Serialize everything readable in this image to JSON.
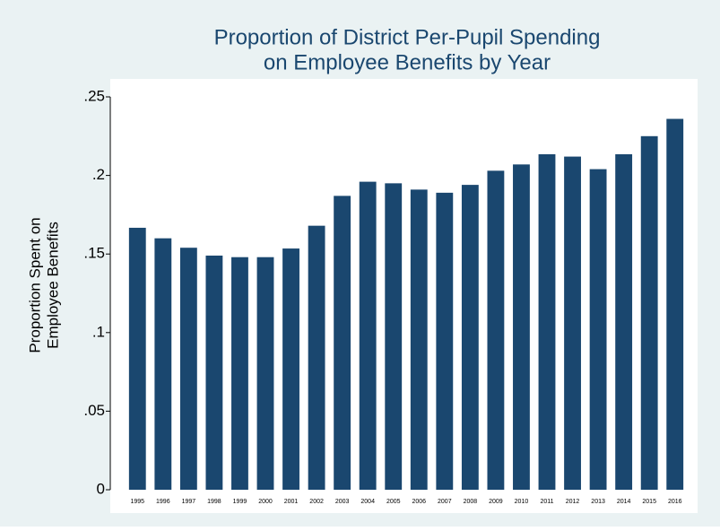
{
  "chart_data": {
    "type": "bar",
    "title": [
      "Proportion of District Per-Pupil Spending",
      "on Employee Benefits by Year"
    ],
    "y_label": [
      "Proportion Spent on",
      "Employee Benefits"
    ],
    "categories": [
      "1995",
      "1996",
      "1997",
      "1998",
      "1999",
      "2000",
      "2001",
      "2002",
      "2003",
      "2004",
      "2005",
      "2006",
      "2007",
      "2008",
      "2009",
      "2010",
      "2011",
      "2012",
      "2013",
      "2014",
      "2015",
      "2016"
    ],
    "values": [
      0.1667,
      0.16,
      0.154,
      0.149,
      0.148,
      0.148,
      0.1535,
      0.168,
      0.187,
      0.196,
      0.195,
      0.191,
      0.189,
      0.194,
      0.203,
      0.207,
      0.2135,
      0.212,
      0.204,
      0.2135,
      0.225,
      0.236
    ],
    "color": "#1a476f",
    "ylim": [
      0,
      0.25
    ],
    "yticks": [
      0,
      {
        "value": 0.05,
        "label": ".05"
      },
      {
        "value": 0.1,
        "label": ".1"
      },
      {
        "value": 0.15,
        "label": ".15"
      },
      {
        "value": 0.2,
        "label": ".2"
      },
      {
        "value": 0.25,
        "label": ".25"
      }
    ],
    "grid": false
  }
}
